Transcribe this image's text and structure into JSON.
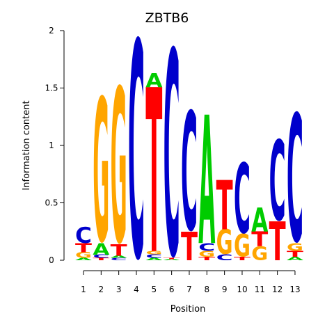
{
  "chart_data": {
    "type": "sequence-logo",
    "title": "ZBTB6",
    "xlabel": "Position",
    "ylabel": "Information content",
    "ylim": [
      0,
      2
    ],
    "y_ticks": [
      "0",
      "0.5",
      "1",
      "1.5",
      "2"
    ],
    "x_ticks": [
      "1",
      "2",
      "3",
      "4",
      "5",
      "6",
      "7",
      "8",
      "9",
      "10",
      "11",
      "12",
      "13"
    ],
    "colors": {
      "A": "#00cc00",
      "C": "#0000cc",
      "G": "#ffa500",
      "T": "#ff0000"
    },
    "positions": [
      {
        "pos": "1",
        "letters": [
          [
            "A",
            0.02
          ],
          [
            "G",
            0.05
          ],
          [
            "T",
            0.08
          ],
          [
            "C",
            0.14
          ]
        ]
      },
      {
        "pos": "2",
        "letters": [
          [
            "T",
            0.02
          ],
          [
            "C",
            0.03
          ],
          [
            "A",
            0.1
          ],
          [
            "G",
            1.27
          ]
        ]
      },
      {
        "pos": "3",
        "letters": [
          [
            "C",
            0.02
          ],
          [
            "A",
            0.02
          ],
          [
            "T",
            0.1
          ],
          [
            "G",
            1.37
          ]
        ]
      },
      {
        "pos": "4",
        "letters": [
          [
            "C",
            1.92
          ]
        ]
      },
      {
        "pos": "5",
        "letters": [
          [
            "A",
            0.02
          ],
          [
            "C",
            0.03
          ],
          [
            "G",
            0.03
          ],
          [
            "T",
            1.43
          ],
          [
            "A",
            0.12
          ]
        ]
      },
      {
        "pos": "6",
        "letters": [
          [
            "A",
            0.01
          ],
          [
            "T",
            0.01
          ],
          [
            "C",
            1.82
          ]
        ]
      },
      {
        "pos": "7",
        "letters": [
          [
            "T",
            0.25
          ],
          [
            "C",
            1.05
          ]
        ]
      },
      {
        "pos": "8",
        "letters": [
          [
            "T",
            0.03
          ],
          [
            "G",
            0.05
          ],
          [
            "C",
            0.07
          ],
          [
            "A",
            1.12
          ]
        ]
      },
      {
        "pos": "9",
        "letters": [
          [
            "C",
            0.05
          ],
          [
            "G",
            0.22
          ],
          [
            "T",
            0.43
          ]
        ]
      },
      {
        "pos": "10",
        "letters": [
          [
            "T",
            0.03
          ],
          [
            "G",
            0.2
          ],
          [
            "C",
            0.62
          ]
        ]
      },
      {
        "pos": "11",
        "letters": [
          [
            "G",
            0.12
          ],
          [
            "T",
            0.13
          ],
          [
            "A",
            0.21
          ]
        ]
      },
      {
        "pos": "12",
        "letters": [
          [
            "T",
            0.34
          ],
          [
            "C",
            0.71
          ]
        ]
      },
      {
        "pos": "13",
        "letters": [
          [
            "A",
            0.03
          ],
          [
            "T",
            0.05
          ],
          [
            "G",
            0.07
          ],
          [
            "C",
            1.13
          ]
        ]
      }
    ]
  }
}
